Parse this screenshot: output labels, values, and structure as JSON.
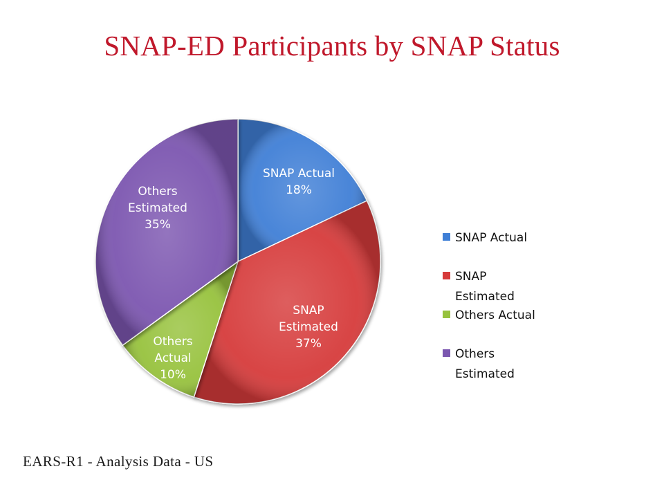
{
  "title": "SNAP-ED Participants by SNAP Status",
  "footer": "EARS-R1 - Analysis Data - US",
  "chart_data": {
    "type": "pie",
    "title": "SNAP-ED Participants by SNAP Status",
    "legend_position": "right",
    "slices": [
      {
        "name": "SNAP Actual",
        "value": 18,
        "label_lines": [
          "SNAP Actual",
          "18%"
        ],
        "legend_lines": [
          "SNAP Actual"
        ],
        "color": "#3f7fd6"
      },
      {
        "name": "SNAP Estimated",
        "value": 37,
        "label_lines": [
          "SNAP",
          "Estimated",
          "37%"
        ],
        "legend_lines": [
          "SNAP",
          "Estimated"
        ],
        "color": "#d63a3a"
      },
      {
        "name": "Others Actual",
        "value": 10,
        "label_lines": [
          "Others",
          "Actual",
          "10%"
        ],
        "legend_lines": [
          "Others Actual"
        ],
        "color": "#97c23e"
      },
      {
        "name": "Others Estimated",
        "value": 35,
        "label_lines": [
          "Others",
          "Estimated",
          "35%"
        ],
        "legend_lines": [
          "Others",
          "Estimated"
        ],
        "color": "#7b57b0"
      }
    ]
  }
}
